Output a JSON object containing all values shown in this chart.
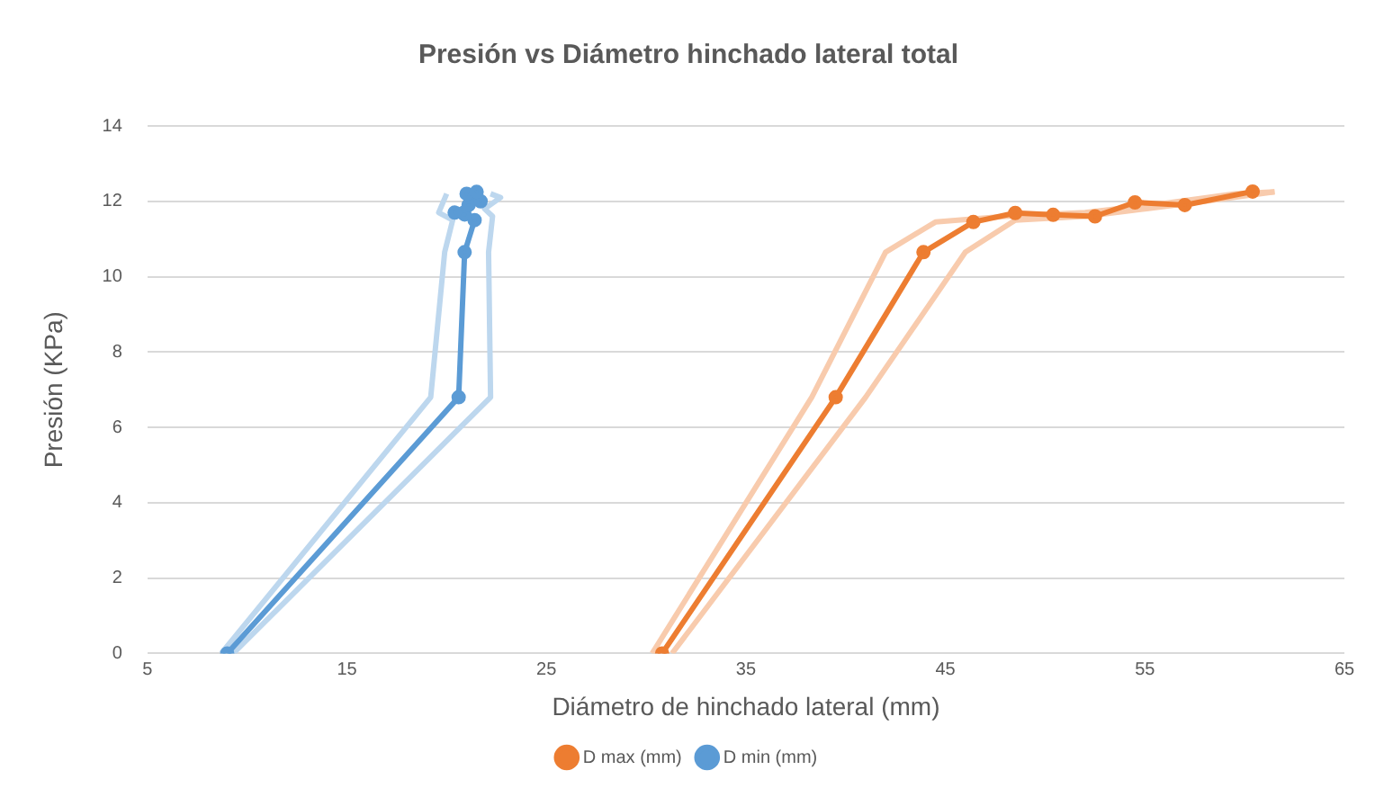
{
  "chart_data": {
    "type": "line",
    "title": "Presión vs Diámetro hinchado lateral total",
    "xlabel": "Diámetro de hinchado lateral (mm)",
    "ylabel": "Presión (KPa)",
    "xlim": [
      5,
      65
    ],
    "xticks": [
      5,
      15,
      25,
      35,
      45,
      55,
      65
    ],
    "ylim": [
      0,
      14
    ],
    "yticks": [
      0,
      2,
      4,
      6,
      8,
      10,
      12,
      14
    ],
    "grid": "y",
    "legend": "bottom",
    "marker": "circle",
    "line_style": "solid",
    "series": [
      {
        "name": "D max (mm)",
        "color": "#ed7d31",
        "x": [
          30.8,
          39.5,
          43.9,
          46.4,
          48.5,
          50.4,
          52.5,
          54.5,
          57.0,
          60.4
        ],
        "values": [
          0,
          6.8,
          10.65,
          11.45,
          11.69,
          11.64,
          11.6,
          11.97,
          11.9,
          12.26
        ]
      },
      {
        "name": "D min (mm)",
        "color": "#5b9bd5",
        "x": [
          9,
          20.6,
          20.9,
          21.4,
          20.9,
          20.4,
          21.1,
          21.7,
          21.0,
          21.5
        ],
        "values": [
          0,
          6.8,
          10.65,
          11.5,
          11.65,
          11.7,
          11.9,
          12.0,
          12.2,
          12.25
        ]
      },
      {
        "color": "#f8cbad",
        "marker": "none",
        "x": [
          30.3,
          38.3,
          42.0,
          44.5,
          48.0,
          52.0,
          56.0,
          59.5,
          61.5
        ],
        "values": [
          0,
          6.8,
          10.65,
          11.45,
          11.6,
          11.7,
          11.95,
          12.2,
          12.25
        ]
      },
      {
        "color": "#f8cbad",
        "marker": "none",
        "x": [
          31.3,
          41.0,
          46.0,
          48.5,
          52.0,
          55.0,
          58.0,
          61.5
        ],
        "values": [
          0,
          6.8,
          10.65,
          11.5,
          11.6,
          11.8,
          12.0,
          12.25
        ]
      },
      {
        "color": "#bdd7ee",
        "marker": "none",
        "x": [
          8.7,
          19.2,
          19.9,
          20.3,
          19.6,
          20.0
        ],
        "values": [
          0,
          6.8,
          10.65,
          11.5,
          11.7,
          12.2
        ]
      },
      {
        "color": "#bdd7ee",
        "marker": "none",
        "x": [
          9.3,
          22.2,
          22.1,
          22.3,
          21.9,
          22.7,
          22.2
        ],
        "values": [
          0,
          6.8,
          10.65,
          11.6,
          11.8,
          12.1,
          12.2
        ]
      }
    ]
  }
}
